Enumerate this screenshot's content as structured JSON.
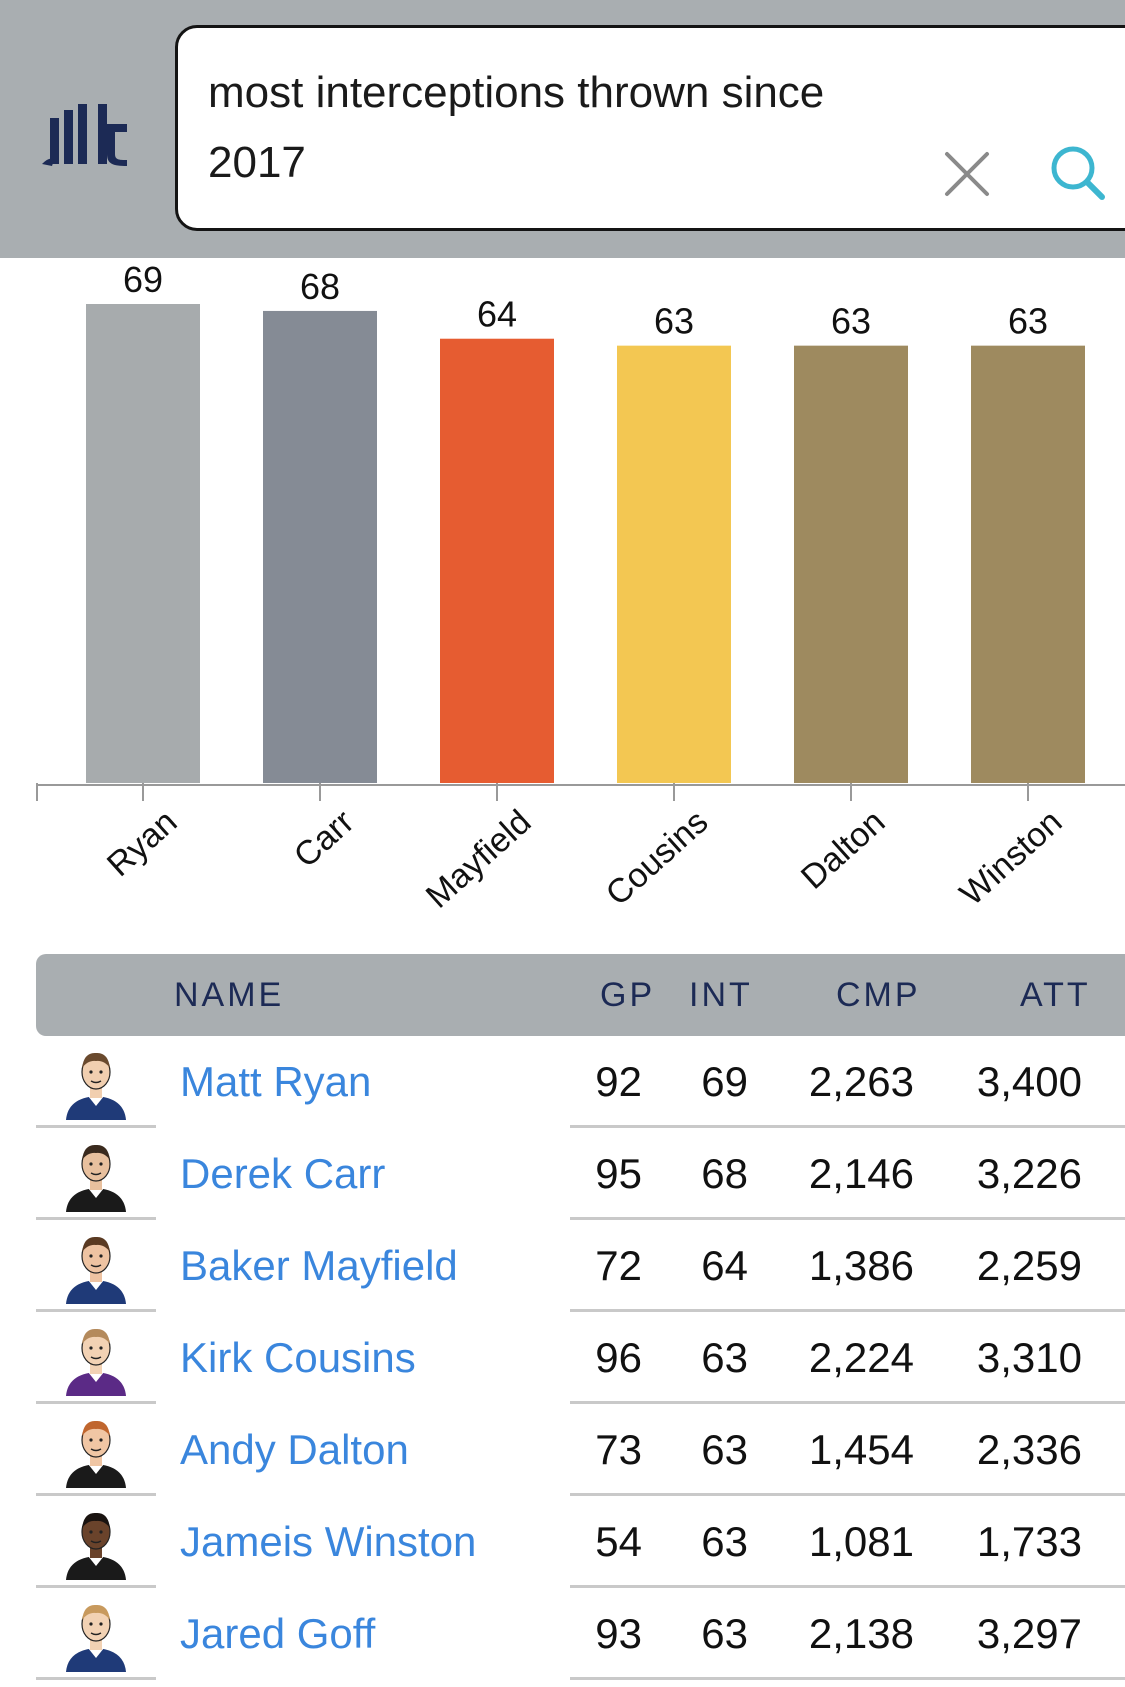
{
  "search": {
    "query": "most interceptions thrown since 2017"
  },
  "icons": {
    "logo": "statmuse-logo",
    "clear": "close-icon",
    "search": "search-icon"
  },
  "colors": {
    "header_bg": "#a9aeb1",
    "link": "#3a86dd",
    "search_icon": "#3db6d0"
  },
  "chart_data": {
    "type": "bar",
    "categories": [
      "Ryan",
      "Carr",
      "Mayfield",
      "Cousins",
      "Dalton",
      "Winston"
    ],
    "values": [
      69,
      68,
      64,
      63,
      63,
      63
    ],
    "colors": [
      "#a7abad",
      "#858b95",
      "#e65c31",
      "#f3c752",
      "#9e8a5f",
      "#9e8a5f"
    ],
    "title": "",
    "xlabel": "",
    "ylabel": "",
    "ylim": [
      0,
      69
    ]
  },
  "table": {
    "columns": [
      "NAME",
      "GP",
      "INT",
      "CMP",
      "ATT"
    ],
    "rows": [
      {
        "name": "Matt Ryan",
        "gp": "92",
        "int": "69",
        "cmp": "2,263",
        "att": "3,400",
        "jersey": "#1f3a78",
        "skin": "#f1cfb0",
        "hair": "#6a4a2e"
      },
      {
        "name": "Derek Carr",
        "gp": "95",
        "int": "68",
        "cmp": "2,146",
        "att": "3,226",
        "jersey": "#1a1a1a",
        "skin": "#e8c09e",
        "hair": "#3a2a1e"
      },
      {
        "name": "Baker Mayfield",
        "gp": "72",
        "int": "64",
        "cmp": "1,386",
        "att": "2,259",
        "jersey": "#1f3a78",
        "skin": "#eec3a2",
        "hair": "#5a3a22"
      },
      {
        "name": "Kirk Cousins",
        "gp": "96",
        "int": "63",
        "cmp": "2,224",
        "att": "3,310",
        "jersey": "#5b2a86",
        "skin": "#f2d2b4",
        "hair": "#b48a5c"
      },
      {
        "name": "Andy Dalton",
        "gp": "73",
        "int": "63",
        "cmp": "1,454",
        "att": "2,336",
        "jersey": "#1a1a1a",
        "skin": "#f0c6a4",
        "hair": "#c0662e"
      },
      {
        "name": "Jameis Winston",
        "gp": "54",
        "int": "63",
        "cmp": "1,081",
        "att": "1,733",
        "jersey": "#1a1a1a",
        "skin": "#6a432b",
        "hair": "#1a1310"
      },
      {
        "name": "Jared Goff",
        "gp": "93",
        "int": "63",
        "cmp": "2,138",
        "att": "3,297",
        "jersey": "#1f3a78",
        "skin": "#f2d2b4",
        "hair": "#c89a5e"
      }
    ]
  }
}
